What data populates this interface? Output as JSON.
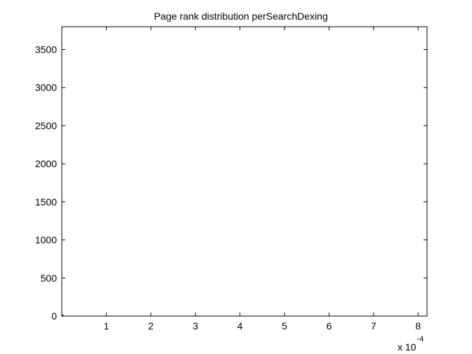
{
  "chart_data": {
    "type": "bar",
    "title": "Page rank distribution perSearchDexing",
    "xlabel": "",
    "ylabel": "",
    "x_scale_label": {
      "base": "x 10",
      "exponent": "-4"
    },
    "xlim": [
      0,
      8.2
    ],
    "ylim": [
      0,
      3800
    ],
    "x_ticks": [
      1,
      2,
      3,
      4,
      5,
      6,
      7,
      8
    ],
    "y_ticks": [
      0,
      500,
      1000,
      1500,
      2000,
      2500,
      3000,
      3500
    ],
    "grid": false,
    "series": [
      {
        "x": [
          0.02
        ],
        "values": [
          4
        ]
      }
    ],
    "colors": {
      "axes": "#000000",
      "background": "#ffffff",
      "bars": "#000080"
    }
  }
}
